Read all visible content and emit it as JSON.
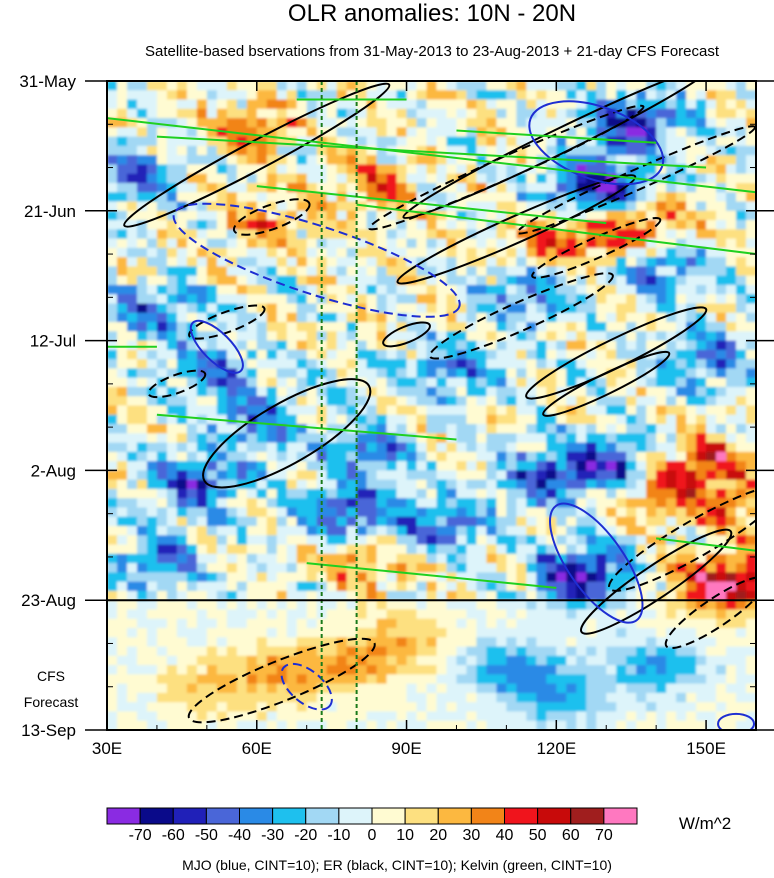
{
  "chart_data": {
    "type": "heatmap",
    "title": "OLR anomalies: 10N - 20N",
    "subtitle": "Satellite-based bservations from 31-May-2013 to 23-Aug-2013 + 21-day CFS Forecast",
    "x_axis": {
      "range": [
        30,
        160
      ],
      "ticks": [
        {
          "value": 30,
          "label": "30E"
        },
        {
          "value": 60,
          "label": "60E"
        },
        {
          "value": 90,
          "label": "90E"
        },
        {
          "value": 120,
          "label": "120E"
        },
        {
          "value": 150,
          "label": "150E"
        }
      ]
    },
    "y_axis": {
      "range_days": [
        0,
        105
      ],
      "reversed": true,
      "ticks": [
        {
          "day": 0,
          "label": "31-May"
        },
        {
          "day": 21,
          "label": "21-Jun"
        },
        {
          "day": 42,
          "label": "12-Jul"
        },
        {
          "day": 63,
          "label": "2-Aug"
        },
        {
          "day": 84,
          "label": "23-Aug"
        },
        {
          "day": 105,
          "label": "13-Sep"
        }
      ]
    },
    "observation_end_day": 84,
    "forecast_label_lines": [
      "CFS",
      "Forecast"
    ],
    "reference_lines_lon": [
      73,
      80
    ],
    "colorbar": {
      "units": "W/m^2",
      "levels": [
        -70,
        -60,
        -50,
        -40,
        -30,
        -20,
        -10,
        0,
        10,
        20,
        30,
        40,
        50,
        60,
        70
      ],
      "colors": [
        "#8a2be2",
        "#0a0a8a",
        "#2020b8",
        "#4a66d8",
        "#2a8ae6",
        "#1ec0ee",
        "#a2d8f4",
        "#ddf4fa",
        "#fffbd2",
        "#fde080",
        "#fcb840",
        "#f28418",
        "#f0141c",
        "#c80a0a",
        "#a01e1e",
        "#ff78c0"
      ]
    },
    "contours": {
      "legend": "MJO (blue, CINT=10); ER (black, CINT=10); Kelvin (green, CINT=10)",
      "series": [
        {
          "name": "MJO",
          "color": "#1e2ed2",
          "cint": 10
        },
        {
          "name": "ER",
          "color": "#000000",
          "cint": 10
        },
        {
          "name": "Kelvin",
          "color": "#20d020",
          "cint": 10
        }
      ]
    },
    "anomaly_features": [
      {
        "lon": 135,
        "day": 7,
        "value": -60
      },
      {
        "lon": 128,
        "day": 17,
        "value": -70
      },
      {
        "lon": 112,
        "day": 21,
        "value": -50
      },
      {
        "lon": 35,
        "day": 15,
        "value": -40
      },
      {
        "lon": 40,
        "day": 37,
        "value": -40
      },
      {
        "lon": 52,
        "day": 47,
        "value": -40
      },
      {
        "lon": 60,
        "day": 55,
        "value": -40
      },
      {
        "lon": 48,
        "day": 65,
        "value": -50
      },
      {
        "lon": 78,
        "day": 70,
        "value": -50
      },
      {
        "lon": 82,
        "day": 60,
        "value": -40
      },
      {
        "lon": 100,
        "day": 47,
        "value": -40
      },
      {
        "lon": 98,
        "day": 72,
        "value": -40
      },
      {
        "lon": 118,
        "day": 64,
        "value": -50
      },
      {
        "lon": 132,
        "day": 62,
        "value": -60
      },
      {
        "lon": 125,
        "day": 80,
        "value": -70
      },
      {
        "lon": 40,
        "day": 78,
        "value": -40
      },
      {
        "lon": 115,
        "day": 35,
        "value": -40
      },
      {
        "lon": 140,
        "day": 30,
        "value": -40
      },
      {
        "lon": 150,
        "day": 45,
        "value": -40
      },
      {
        "lon": 110,
        "day": 95,
        "value": -30
      },
      {
        "lon": 140,
        "day": 95,
        "value": -30
      },
      {
        "lon": 120,
        "day": 99,
        "value": -30
      },
      {
        "lon": 60,
        "day": 8,
        "value": 30
      },
      {
        "lon": 84,
        "day": 17,
        "value": 30
      },
      {
        "lon": 62,
        "day": 22,
        "value": 30
      },
      {
        "lon": 117,
        "day": 24,
        "value": 50
      },
      {
        "lon": 130,
        "day": 26,
        "value": 40
      },
      {
        "lon": 108,
        "day": 20,
        "value": 30
      },
      {
        "lon": 140,
        "day": 23,
        "value": 30
      },
      {
        "lon": 150,
        "day": 62,
        "value": 50
      },
      {
        "lon": 140,
        "day": 66,
        "value": 40
      },
      {
        "lon": 155,
        "day": 70,
        "value": 30
      },
      {
        "lon": 80,
        "day": 78,
        "value": 30
      },
      {
        "lon": 150,
        "day": 82,
        "value": 30
      },
      {
        "lon": 157,
        "day": 81,
        "value": 50
      },
      {
        "lon": 65,
        "day": 96,
        "value": 30
      },
      {
        "lon": 80,
        "day": 94,
        "value": 30
      },
      {
        "lon": 50,
        "day": 98,
        "value": 20
      },
      {
        "lon": 90,
        "day": 90,
        "value": 20
      }
    ]
  }
}
